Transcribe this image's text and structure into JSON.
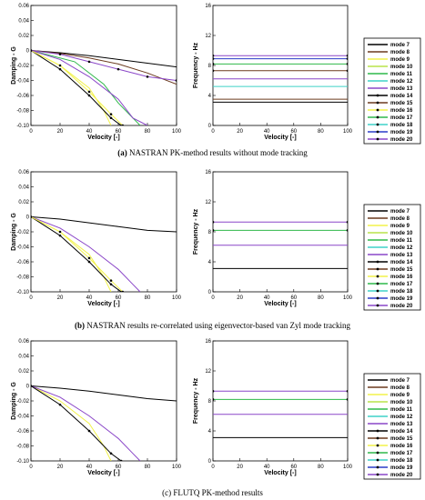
{
  "modes": [
    {
      "name": "mode 7",
      "color": "#000000",
      "marker": false
    },
    {
      "name": "mode 8",
      "color": "#6b3a1e",
      "marker": false
    },
    {
      "name": "mode 9",
      "color": "#f2f24a",
      "marker": false
    },
    {
      "name": "mode 10",
      "color": "#b9e34a",
      "marker": false
    },
    {
      "name": "mode 11",
      "color": "#2fb84a",
      "marker": false
    },
    {
      "name": "mode 12",
      "color": "#3fd2c8",
      "marker": false
    },
    {
      "name": "mode 13",
      "color": "#8a46c8",
      "marker": false
    },
    {
      "name": "mode 14",
      "color": "#000000",
      "marker": true
    },
    {
      "name": "mode 15",
      "color": "#6b3a1e",
      "marker": true
    },
    {
      "name": "mode 16",
      "color": "#f2f24a",
      "marker": true
    },
    {
      "name": "mode 17",
      "color": "#2fb84a",
      "marker": true
    },
    {
      "name": "mode 18",
      "color": "#3fd2c8",
      "marker": true
    },
    {
      "name": "mode 19",
      "color": "#2a3cc8",
      "marker": true
    },
    {
      "name": "mode 20",
      "color": "#8a46c8",
      "marker": true
    }
  ],
  "captions": [
    {
      "label": "(a)",
      "text": "NASTRAN PK-method results without mode tracking"
    },
    {
      "label": "(b)",
      "text": "NASTRAN results re-correlated using eigenvector-based van Zyl mode tracking"
    },
    {
      "label": "(c)",
      "text": "FLUTQ PK-method results"
    }
  ],
  "chart_data": [
    {
      "type": "line",
      "panel": "a-damping",
      "xlabel": "Velocity [-]",
      "ylabel": "Damping - G",
      "xlim": [
        0,
        100
      ],
      "ylim": [
        -0.1,
        0.06
      ],
      "xticks": [
        0,
        20,
        40,
        60,
        80,
        100
      ],
      "yticks": [
        -0.1,
        -0.08,
        -0.06,
        -0.04,
        -0.02,
        0,
        0.02,
        0.04,
        0.06
      ],
      "series": [
        {
          "name": "mode 7",
          "x": [
            0,
            20,
            40,
            60,
            80,
            100
          ],
          "y": [
            0,
            -0.003,
            -0.007,
            -0.012,
            -0.017,
            -0.022
          ]
        },
        {
          "name": "mode 8",
          "x": [
            0,
            20,
            40,
            60,
            80,
            100
          ],
          "y": [
            0,
            -0.004,
            -0.01,
            -0.018,
            -0.03,
            -0.045
          ]
        },
        {
          "name": "mode 9",
          "x": [
            0,
            20,
            40,
            50,
            55
          ],
          "y": [
            0,
            -0.02,
            -0.05,
            -0.08,
            -0.1
          ]
        },
        {
          "name": "mode 11",
          "x": [
            0,
            30,
            50,
            60,
            70,
            75
          ],
          "y": [
            0,
            -0.015,
            -0.045,
            -0.07,
            -0.09,
            -0.1
          ]
        },
        {
          "name": "mode 13",
          "x": [
            0,
            20,
            40,
            60,
            70,
            80
          ],
          "y": [
            0,
            -0.012,
            -0.035,
            -0.065,
            -0.09,
            -0.1
          ]
        },
        {
          "name": "mode 14",
          "x": [
            0,
            20,
            40,
            55,
            62
          ],
          "y": [
            0,
            -0.025,
            -0.06,
            -0.09,
            -0.1
          ]
        },
        {
          "name": "mode 16",
          "x": [
            0,
            20,
            40,
            55,
            63
          ],
          "y": [
            0,
            -0.02,
            -0.055,
            -0.085,
            -0.1
          ]
        },
        {
          "name": "mode 20",
          "x": [
            0,
            20,
            40,
            60,
            80,
            100
          ],
          "y": [
            0,
            -0.005,
            -0.015,
            -0.025,
            -0.035,
            -0.04
          ]
        }
      ]
    },
    {
      "type": "line",
      "panel": "a-frequency",
      "xlabel": "Velocity [-]",
      "ylabel": "Frequency - Hz",
      "xlim": [
        0,
        100
      ],
      "ylim": [
        0,
        16
      ],
      "xticks": [
        0,
        20,
        40,
        60,
        80,
        100
      ],
      "yticks": [
        0,
        4,
        8,
        12,
        16
      ],
      "series": [
        {
          "name": "mode 7",
          "x": [
            0,
            100
          ],
          "y": [
            3.1,
            3.1
          ]
        },
        {
          "name": "mode 8",
          "x": [
            0,
            100
          ],
          "y": [
            3.5,
            3.5
          ]
        },
        {
          "name": "mode 12",
          "x": [
            0,
            100
          ],
          "y": [
            5.2,
            5.2
          ]
        },
        {
          "name": "mode 13",
          "x": [
            0,
            100
          ],
          "y": [
            6.2,
            6.2
          ]
        },
        {
          "name": "mode 15",
          "x": [
            0,
            100
          ],
          "y": [
            7.3,
            7.3
          ]
        },
        {
          "name": "mode 17",
          "x": [
            0,
            100
          ],
          "y": [
            8.2,
            8.2
          ]
        },
        {
          "name": "mode 19",
          "x": [
            0,
            100
          ],
          "y": [
            8.9,
            8.9
          ]
        },
        {
          "name": "mode 20",
          "x": [
            0,
            100
          ],
          "y": [
            9.3,
            9.3
          ]
        }
      ]
    },
    {
      "type": "line",
      "panel": "b-damping",
      "xlabel": "Velocity [-]",
      "ylabel": "Damping - G",
      "xlim": [
        0,
        100
      ],
      "ylim": [
        -0.1,
        0.06
      ],
      "xticks": [
        0,
        20,
        40,
        60,
        80,
        100
      ],
      "yticks": [
        -0.1,
        -0.08,
        -0.06,
        -0.04,
        -0.02,
        0,
        0.02,
        0.04,
        0.06
      ],
      "series": [
        {
          "name": "mode 7",
          "x": [
            0,
            20,
            40,
            60,
            80,
            100
          ],
          "y": [
            0,
            -0.003,
            -0.008,
            -0.013,
            -0.018,
            -0.02
          ]
        },
        {
          "name": "mode 9",
          "x": [
            0,
            20,
            40,
            50,
            55
          ],
          "y": [
            0,
            -0.02,
            -0.05,
            -0.08,
            -0.1
          ]
        },
        {
          "name": "mode 13",
          "x": [
            0,
            20,
            40,
            60,
            70,
            75
          ],
          "y": [
            0,
            -0.015,
            -0.04,
            -0.07,
            -0.09,
            -0.1
          ]
        },
        {
          "name": "mode 14",
          "x": [
            0,
            20,
            40,
            55,
            62
          ],
          "y": [
            0,
            -0.025,
            -0.06,
            -0.09,
            -0.1
          ]
        },
        {
          "name": "mode 16",
          "x": [
            0,
            20,
            40,
            55,
            63
          ],
          "y": [
            0,
            -0.02,
            -0.055,
            -0.085,
            -0.1
          ]
        }
      ]
    },
    {
      "type": "line",
      "panel": "b-frequency",
      "xlabel": "Velocity [-]",
      "ylabel": "Frequency - Hz",
      "xlim": [
        0,
        100
      ],
      "ylim": [
        0,
        16
      ],
      "xticks": [
        0,
        20,
        40,
        60,
        80,
        100
      ],
      "yticks": [
        0,
        4,
        8,
        12,
        16
      ],
      "series": [
        {
          "name": "mode 7",
          "x": [
            0,
            100
          ],
          "y": [
            3.1,
            3.1
          ]
        },
        {
          "name": "mode 13",
          "x": [
            0,
            100
          ],
          "y": [
            6.2,
            6.2
          ]
        },
        {
          "name": "mode 17",
          "x": [
            0,
            100
          ],
          "y": [
            8.2,
            8.2
          ]
        },
        {
          "name": "mode 20",
          "x": [
            0,
            100
          ],
          "y": [
            9.3,
            9.3
          ]
        }
      ]
    },
    {
      "type": "line",
      "panel": "c-damping",
      "xlabel": "Velocity [-]",
      "ylabel": "Damping - G",
      "xlim": [
        0,
        100
      ],
      "ylim": [
        -0.1,
        0.06
      ],
      "xticks": [
        0,
        20,
        40,
        60,
        80,
        100
      ],
      "yticks": [
        -0.1,
        -0.08,
        -0.06,
        -0.04,
        -0.02,
        0,
        0.02,
        0.04,
        0.06
      ],
      "series": [
        {
          "name": "mode 7",
          "x": [
            0,
            20,
            40,
            60,
            80,
            100
          ],
          "y": [
            0,
            -0.003,
            -0.007,
            -0.012,
            -0.017,
            -0.02
          ]
        },
        {
          "name": "mode 9",
          "x": [
            0,
            20,
            40,
            50,
            55
          ],
          "y": [
            0,
            -0.02,
            -0.05,
            -0.08,
            -0.1
          ]
        },
        {
          "name": "mode 13",
          "x": [
            0,
            20,
            40,
            60,
            70,
            75
          ],
          "y": [
            0,
            -0.015,
            -0.04,
            -0.07,
            -0.09,
            -0.1
          ]
        },
        {
          "name": "mode 14",
          "x": [
            0,
            20,
            40,
            55,
            62
          ],
          "y": [
            0,
            -0.025,
            -0.06,
            -0.09,
            -0.1
          ]
        }
      ]
    },
    {
      "type": "line",
      "panel": "c-frequency",
      "xlabel": "Velocity [-]",
      "ylabel": "Frequency - Hz",
      "xlim": [
        0,
        100
      ],
      "ylim": [
        0,
        16
      ],
      "xticks": [
        0,
        20,
        40,
        60,
        80,
        100
      ],
      "yticks": [
        0,
        4,
        8,
        12,
        16
      ],
      "series": [
        {
          "name": "mode 7",
          "x": [
            0,
            100
          ],
          "y": [
            3.1,
            3.1
          ]
        },
        {
          "name": "mode 13",
          "x": [
            0,
            100
          ],
          "y": [
            6.2,
            6.2
          ]
        },
        {
          "name": "mode 17",
          "x": [
            0,
            100
          ],
          "y": [
            8.2,
            8.2
          ]
        },
        {
          "name": "mode 20",
          "x": [
            0,
            100
          ],
          "y": [
            9.3,
            9.3
          ]
        }
      ]
    }
  ]
}
